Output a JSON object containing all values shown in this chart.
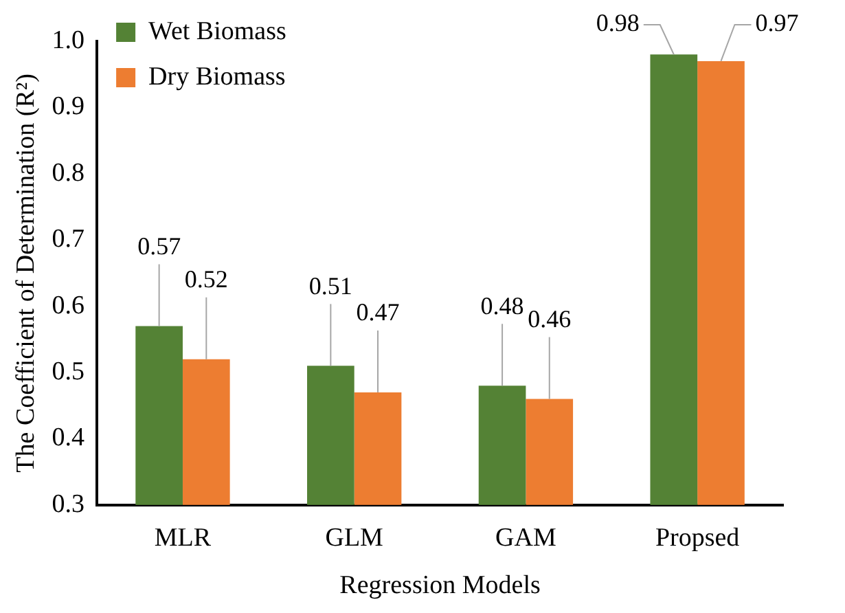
{
  "chart_data": {
    "type": "bar",
    "xlabel": "Regression Models",
    "ylabel": "The Coefficient of Determination (R²)",
    "categories": [
      "MLR",
      "GLM",
      "GAM",
      "Propsed"
    ],
    "series": [
      {
        "name": "Wet Biomass",
        "color": "#548235",
        "values": [
          0.57,
          0.51,
          0.48,
          0.98
        ]
      },
      {
        "name": "Dry Biomass",
        "color": "#ed7d31",
        "values": [
          0.52,
          0.47,
          0.46,
          0.97
        ]
      }
    ],
    "ylim": [
      0.3,
      1.0
    ],
    "yticks": [
      0.3,
      0.4,
      0.5,
      0.6,
      0.7,
      0.8,
      0.9,
      {
        "value": 1,
        "label": "1.0"
      }
    ],
    "grid": false,
    "legend": "top left",
    "data_labels": true
  }
}
